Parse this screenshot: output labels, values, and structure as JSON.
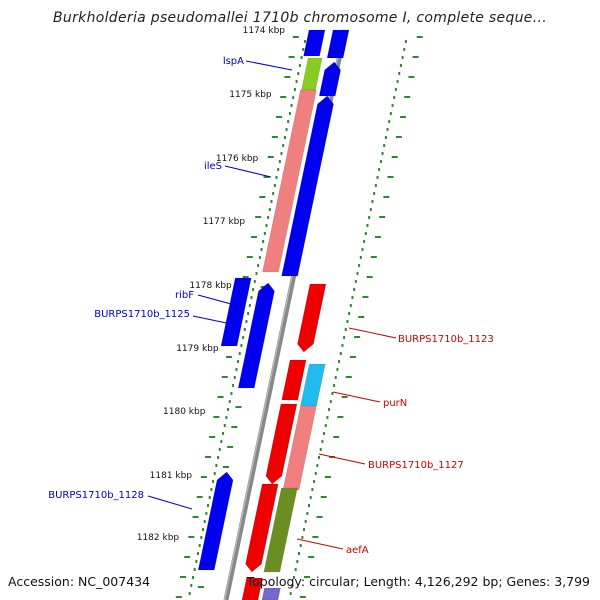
{
  "title": "Burkholderia pseudomallei 1710b chromosome I, complete seque...",
  "footer": {
    "accession": "Accession: NC_007434",
    "summary": "Topology: circular; Length: 4,126,292 bp; Genes: 3,799"
  },
  "colors": {
    "forward_strand": "#0000ee",
    "reverse_strand": "#ee0000",
    "forward_label": "#0000cc",
    "reverse_label": "#cc0000",
    "tick": "#2f8a2f",
    "backbone": "#888888"
  },
  "kbp_ticks": [
    "1174 kbp",
    "1175 kbp",
    "1176 kbp",
    "1177 kbp",
    "1178 kbp",
    "1179 kbp",
    "1180 kbp",
    "1181 kbp",
    "1182 kbp"
  ],
  "gene_labels": [
    {
      "text": "lspA",
      "strand": "forward"
    },
    {
      "text": "ileS",
      "strand": "forward"
    },
    {
      "text": "ribF",
      "strand": "forward"
    },
    {
      "text": "BURPS1710b_1125",
      "strand": "forward"
    },
    {
      "text": "BURPS1710b_1128",
      "strand": "forward"
    },
    {
      "text": "BURPS1710b_1123",
      "strand": "reverse"
    },
    {
      "text": "purN",
      "strand": "reverse"
    },
    {
      "text": "BURPS1710b_1127",
      "strand": "reverse"
    },
    {
      "text": "aefA",
      "strand": "reverse"
    }
  ]
}
